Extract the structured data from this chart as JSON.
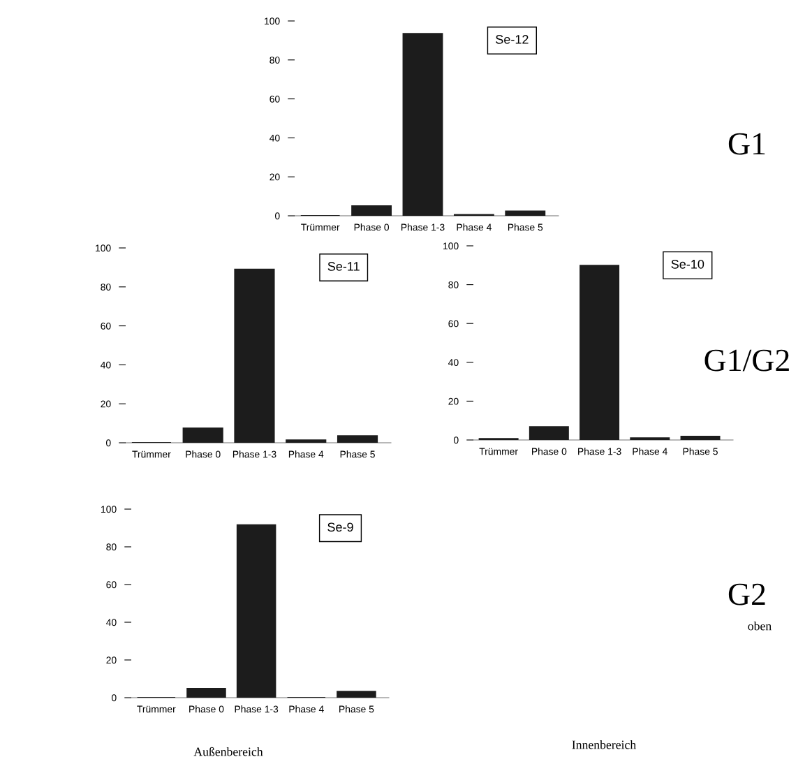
{
  "chart_data": [
    {
      "type": "bar",
      "categories": [
        "Trümmer",
        "Phase 0",
        "Phase 1-3",
        "Phase 4",
        "Phase 5"
      ],
      "values": [
        0,
        5.0,
        93.4,
        0.5,
        2.3
      ],
      "color": "#1c1c1c",
      "ylim": [
        0,
        100
      ],
      "yticks": [
        0,
        20,
        40,
        60,
        80,
        100
      ],
      "grid": false,
      "legend": false,
      "annotations": [
        "Se-12",
        "G1"
      ]
    },
    {
      "type": "bar",
      "categories": [
        "Trümmer",
        "Phase 0",
        "Phase 1-3",
        "Phase 4",
        "Phase 5"
      ],
      "values": [
        0,
        7.4,
        89.0,
        1.3,
        3.5
      ],
      "color": "#1c1c1c",
      "ylim": [
        0,
        100
      ],
      "yticks": [
        0,
        20,
        40,
        60,
        80,
        100
      ],
      "grid": false,
      "legend": false,
      "annotations": [
        "Se-11"
      ]
    },
    {
      "type": "bar",
      "categories": [
        "Trümmer",
        "Phase 0",
        "Phase 1-3",
        "Phase 4",
        "Phase 5"
      ],
      "values": [
        0.6,
        6.7,
        89.8,
        1.0,
        1.8
      ],
      "color": "#1c1c1c",
      "ylim": [
        0,
        100
      ],
      "yticks": [
        0,
        20,
        40,
        60,
        80,
        100
      ],
      "grid": false,
      "legend": false,
      "annotations": [
        "Se-10",
        "G1/G2",
        "Innenbereich"
      ]
    },
    {
      "type": "bar",
      "categories": [
        "Trümmer",
        "Phase 0",
        "Phase 1-3",
        "Phase 4",
        "Phase 5"
      ],
      "values": [
        0,
        4.8,
        91.6,
        0,
        3.2
      ],
      "color": "#1c1c1c",
      "ylim": [
        0,
        100
      ],
      "yticks": [
        0,
        20,
        40,
        60,
        80,
        100
      ],
      "grid": false,
      "legend": false,
      "annotations": [
        "Se-9",
        "G2",
        "oben",
        "Außenbereich"
      ]
    }
  ]
}
